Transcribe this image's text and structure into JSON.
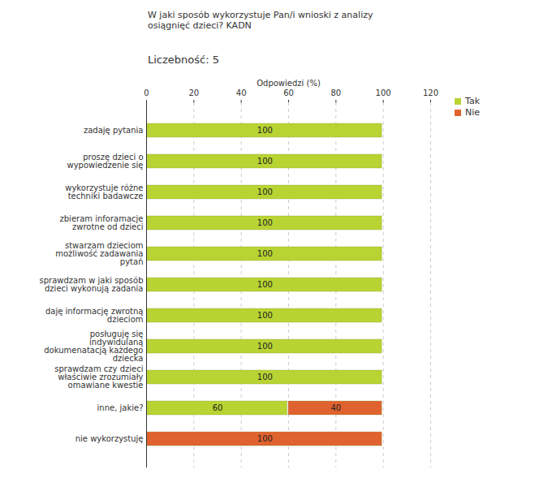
{
  "chart_data": {
    "type": "bar",
    "orientation": "horizontal",
    "stacked": true,
    "title": "W jaki sposób wykorzystuje Pan/i wnioski z analizy osiągnięć dzieci? KADN",
    "subtitle": "Liczebność: 5",
    "x_label": "Odpowiedzi (%)",
    "categories": [
      "zadaję pytania",
      "proszę dzieci o wypowiedzenie się",
      "wykorzystuje różne techniki badawcze",
      "zbieram inforamacje zwrotne od dzieci",
      "stwarzam dzieciom możliwość zadawania pytań",
      "sprawdzam w jaki sposób dzieci wykonują zadania",
      "daję informację zwrotną dzieciom",
      "posługuję się indywidulaną dokumenatacją każdego dziecka",
      "sprawdzam czy dzieci właściwie zrozumiały omawiane kwestie",
      "inne, jakie?",
      "nie wykorzystuję"
    ],
    "series": [
      {
        "name": "Tak",
        "color": "#b8d432",
        "values": [
          100,
          100,
          100,
          100,
          100,
          100,
          100,
          100,
          100,
          60,
          0
        ]
      },
      {
        "name": "Nie",
        "color": "#e0622f",
        "values": [
          0,
          0,
          0,
          0,
          0,
          0,
          0,
          0,
          0,
          40,
          100
        ]
      }
    ],
    "xlim": [
      0,
      120
    ],
    "xticks": [
      0,
      20,
      40,
      60,
      80,
      100,
      120
    ],
    "grid": true,
    "data_labels": true,
    "legend": "right"
  }
}
